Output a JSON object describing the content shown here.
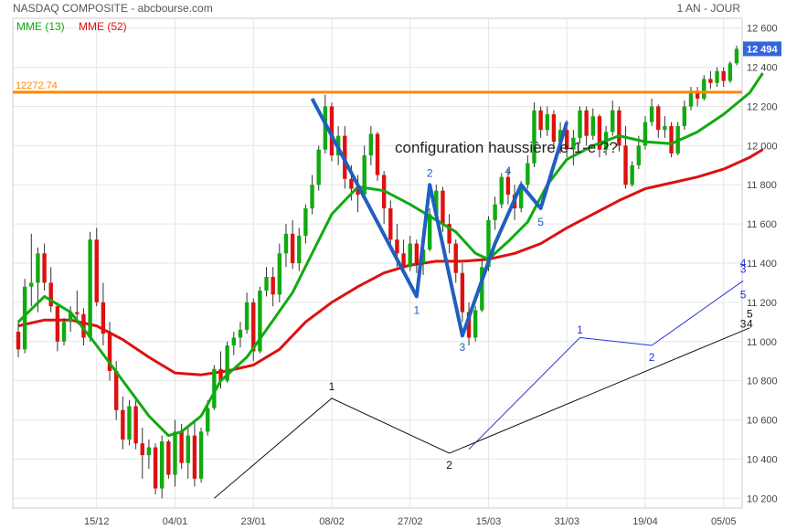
{
  "header": {
    "title": "NASDAQ COMPOSITE - abcbourse.com",
    "period": "1 AN - JOUR"
  },
  "legend": {
    "ema13_label": "MME (13)",
    "ema52_label": "MME (52)"
  },
  "colors": {
    "ema13": "#11aa11",
    "ema52": "#dd1111",
    "up_candle": "#11aa11",
    "down_candle": "#dd1111",
    "resistance": "#ff8800",
    "last_price_badge": "#3366dd",
    "wave_pattern": "#1f5fbf",
    "projection_blue": "#2233dd",
    "projection_black": "#111111",
    "grid": "#e6e6e6"
  },
  "chart_data": {
    "type": "candlestick",
    "title": "NASDAQ COMPOSITE",
    "grid": true,
    "ylim": [
      10150,
      12650
    ],
    "y_ticks": [
      10200,
      10400,
      10600,
      10800,
      11000,
      11200,
      11400,
      11600,
      11800,
      12000,
      12200,
      12400,
      12600
    ],
    "y_tick_labels": [
      "10 200",
      "10 400",
      "10 600",
      "10 800",
      "11 000",
      "11 200",
      "11 400",
      "11 600",
      "11 800",
      "12 000",
      "12 200",
      "12 400",
      "12 600"
    ],
    "x_ticks": [
      {
        "index": 12,
        "label": "15/12"
      },
      {
        "index": 24,
        "label": "04/01"
      },
      {
        "index": 36,
        "label": "23/01"
      },
      {
        "index": 48,
        "label": "08/02"
      },
      {
        "index": 60,
        "label": "27/02"
      },
      {
        "index": 72,
        "label": "15/03"
      },
      {
        "index": 84,
        "label": "31/03"
      },
      {
        "index": 96,
        "label": "19/04"
      },
      {
        "index": 108,
        "label": "05/05"
      }
    ],
    "resistance": {
      "value": 12272.74,
      "label": "12272.74"
    },
    "last_price": {
      "value": 12494,
      "label": "12 494"
    },
    "candles": [
      [
        11050,
        11100,
        10920,
        10960
      ],
      [
        10960,
        11320,
        10940,
        11280
      ],
      [
        11280,
        11550,
        11180,
        11300
      ],
      [
        11300,
        11480,
        11150,
        11450
      ],
      [
        11450,
        11500,
        11260,
        11300
      ],
      [
        11300,
        11380,
        11150,
        11180
      ],
      [
        11180,
        11200,
        10950,
        11000
      ],
      [
        11000,
        11120,
        10980,
        11100
      ],
      [
        11100,
        11180,
        11050,
        11150
      ],
      [
        11150,
        11260,
        11090,
        11140
      ],
      [
        11140,
        11170,
        10980,
        11020
      ],
      [
        11020,
        11560,
        11000,
        11520
      ],
      [
        11520,
        11580,
        11180,
        11200
      ],
      [
        11200,
        11300,
        10980,
        11040
      ],
      [
        11040,
        11100,
        10800,
        10850
      ],
      [
        10850,
        10900,
        10600,
        10650
      ],
      [
        10650,
        10720,
        10450,
        10500
      ],
      [
        10500,
        10700,
        10470,
        10670
      ],
      [
        10670,
        10700,
        10450,
        10480
      ],
      [
        10480,
        10560,
        10300,
        10420
      ],
      [
        10420,
        10500,
        10350,
        10460
      ],
      [
        10460,
        10480,
        10220,
        10250
      ],
      [
        10250,
        10520,
        10200,
        10490
      ],
      [
        10490,
        10500,
        10300,
        10320
      ],
      [
        10320,
        10600,
        10260,
        10540
      ],
      [
        10540,
        10580,
        10350,
        10380
      ],
      [
        10380,
        10560,
        10300,
        10520
      ],
      [
        10520,
        10600,
        10260,
        10300
      ],
      [
        10300,
        10560,
        10280,
        10540
      ],
      [
        10540,
        10700,
        10520,
        10660
      ],
      [
        10660,
        10880,
        10650,
        10860
      ],
      [
        10860,
        10950,
        10760,
        10800
      ],
      [
        10800,
        11000,
        10790,
        10980
      ],
      [
        10980,
        11050,
        10930,
        11020
      ],
      [
        11020,
        11100,
        10970,
        11060
      ],
      [
        11060,
        11250,
        11040,
        11200
      ],
      [
        11200,
        11220,
        10900,
        10950
      ],
      [
        10950,
        11280,
        10940,
        11260
      ],
      [
        11260,
        11380,
        11230,
        11330
      ],
      [
        11330,
        11380,
        11180,
        11240
      ],
      [
        11240,
        11500,
        11200,
        11450
      ],
      [
        11450,
        11600,
        11380,
        11550
      ],
      [
        11550,
        11620,
        11370,
        11400
      ],
      [
        11400,
        11580,
        11360,
        11540
      ],
      [
        11540,
        11700,
        11500,
        11680
      ],
      [
        11680,
        11850,
        11650,
        11800
      ],
      [
        11800,
        12000,
        11770,
        11980
      ],
      [
        11980,
        12260,
        11960,
        12200
      ],
      [
        12200,
        12220,
        11920,
        11950
      ],
      [
        11950,
        12100,
        11900,
        12050
      ],
      [
        12050,
        12100,
        11780,
        11830
      ],
      [
        11830,
        11900,
        11720,
        11780
      ],
      [
        11780,
        11850,
        11660,
        11750
      ],
      [
        11750,
        12000,
        11740,
        11950
      ],
      [
        11950,
        12100,
        11900,
        12060
      ],
      [
        12060,
        12070,
        11820,
        11850
      ],
      [
        11850,
        11870,
        11600,
        11680
      ],
      [
        11680,
        11720,
        11480,
        11520
      ],
      [
        11520,
        11600,
        11380,
        11450
      ],
      [
        11450,
        11520,
        11340,
        11380
      ],
      [
        11380,
        11540,
        11360,
        11500
      ],
      [
        11500,
        11520,
        11350,
        11400
      ],
      [
        11400,
        11500,
        11340,
        11470
      ],
      [
        11470,
        11680,
        11460,
        11650
      ],
      [
        11650,
        11800,
        11620,
        11770
      ],
      [
        11770,
        11790,
        11560,
        11600
      ],
      [
        11600,
        11650,
        11450,
        11500
      ],
      [
        11500,
        11520,
        11300,
        11350
      ],
      [
        11350,
        11400,
        11100,
        11150
      ],
      [
        11150,
        11200,
        10980,
        11020
      ],
      [
        11020,
        11180,
        11000,
        11160
      ],
      [
        11160,
        11420,
        11150,
        11380
      ],
      [
        11380,
        11640,
        11360,
        11620
      ],
      [
        11620,
        11740,
        11570,
        11700
      ],
      [
        11700,
        11860,
        11680,
        11840
      ],
      [
        11840,
        11880,
        11700,
        11750
      ],
      [
        11750,
        11800,
        11620,
        11680
      ],
      [
        11680,
        11820,
        11660,
        11800
      ],
      [
        11800,
        11950,
        11780,
        11910
      ],
      [
        11910,
        12220,
        11890,
        12180
      ],
      [
        12180,
        12200,
        12040,
        12080
      ],
      [
        12080,
        12200,
        12050,
        12160
      ],
      [
        12160,
        12180,
        11980,
        12020
      ],
      [
        12020,
        12120,
        11960,
        12080
      ],
      [
        12080,
        12130,
        11940,
        11980
      ],
      [
        11980,
        12080,
        11900,
        12040
      ],
      [
        12040,
        12200,
        12010,
        12180
      ],
      [
        12180,
        12200,
        12000,
        12050
      ],
      [
        12050,
        12190,
        12030,
        12150
      ],
      [
        12150,
        12160,
        11940,
        11980
      ],
      [
        11980,
        12100,
        11950,
        12070
      ],
      [
        12070,
        12230,
        12050,
        12180
      ],
      [
        12180,
        12200,
        11970,
        12000
      ],
      [
        12000,
        12100,
        11780,
        11800
      ],
      [
        11800,
        11920,
        11790,
        11900
      ],
      [
        11900,
        12050,
        11880,
        12000
      ],
      [
        12000,
        12150,
        11980,
        12120
      ],
      [
        12120,
        12240,
        12100,
        12200
      ],
      [
        12200,
        12210,
        12040,
        12080
      ],
      [
        12080,
        12150,
        12040,
        12100
      ],
      [
        12100,
        12120,
        11940,
        11960
      ],
      [
        11960,
        12120,
        11950,
        12100
      ],
      [
        12100,
        12230,
        12080,
        12200
      ],
      [
        12200,
        12300,
        12180,
        12280
      ],
      [
        12280,
        12300,
        12200,
        12240
      ],
      [
        12240,
        12360,
        12230,
        12340
      ],
      [
        12340,
        12380,
        12290,
        12320
      ],
      [
        12320,
        12400,
        12300,
        12380
      ],
      [
        12380,
        12400,
        12300,
        12330
      ],
      [
        12330,
        12430,
        12320,
        12420
      ],
      [
        12420,
        12510,
        12410,
        12494
      ]
    ],
    "ema13": [
      [
        0,
        11100
      ],
      [
        4,
        11230
      ],
      [
        8,
        11150
      ],
      [
        12,
        10980
      ],
      [
        16,
        10800
      ],
      [
        20,
        10620
      ],
      [
        23,
        10520
      ],
      [
        25,
        10540
      ],
      [
        28,
        10620
      ],
      [
        31,
        10800
      ],
      [
        35,
        10920
      ],
      [
        38,
        11060
      ],
      [
        42,
        11250
      ],
      [
        45,
        11450
      ],
      [
        48,
        11650
      ],
      [
        52,
        11790
      ],
      [
        56,
        11770
      ],
      [
        60,
        11700
      ],
      [
        64,
        11620
      ],
      [
        67,
        11560
      ],
      [
        70,
        11450
      ],
      [
        72,
        11420
      ],
      [
        75,
        11510
      ],
      [
        78,
        11610
      ],
      [
        81,
        11800
      ],
      [
        84,
        11930
      ],
      [
        88,
        12000
      ],
      [
        92,
        12050
      ],
      [
        96,
        12020
      ],
      [
        100,
        12010
      ],
      [
        104,
        12070
      ],
      [
        108,
        12160
      ],
      [
        112,
        12270
      ],
      [
        114,
        12370
      ]
    ],
    "ema52": [
      [
        0,
        11080
      ],
      [
        4,
        11110
      ],
      [
        8,
        11110
      ],
      [
        12,
        11080
      ],
      [
        16,
        11010
      ],
      [
        20,
        10920
      ],
      [
        24,
        10840
      ],
      [
        28,
        10830
      ],
      [
        32,
        10850
      ],
      [
        36,
        10880
      ],
      [
        40,
        10960
      ],
      [
        44,
        11100
      ],
      [
        48,
        11200
      ],
      [
        52,
        11280
      ],
      [
        56,
        11350
      ],
      [
        60,
        11390
      ],
      [
        64,
        11410
      ],
      [
        68,
        11410
      ],
      [
        72,
        11420
      ],
      [
        76,
        11450
      ],
      [
        80,
        11500
      ],
      [
        84,
        11580
      ],
      [
        88,
        11650
      ],
      [
        92,
        11720
      ],
      [
        96,
        11780
      ],
      [
        100,
        11810
      ],
      [
        104,
        11840
      ],
      [
        108,
        11880
      ],
      [
        112,
        11940
      ],
      [
        114,
        11980
      ]
    ],
    "annotation": "configuration haussière e-1-e ??",
    "wave_pattern_blue_thick": {
      "points": [
        [
          45,
          12240
        ],
        [
          61,
          11230
        ],
        [
          63,
          11800
        ],
        [
          68,
          11030
        ],
        [
          73,
          11500
        ],
        [
          77,
          11800
        ],
        [
          80,
          11680
        ],
        [
          84,
          12120
        ]
      ],
      "labels": [
        {
          "text": "1",
          "at": [
            61,
            11160
          ]
        },
        {
          "text": "2",
          "at": [
            63,
            11860
          ]
        },
        {
          "text": "3",
          "at": [
            68,
            10970
          ]
        },
        {
          "text": "4",
          "at": [
            75,
            11870
          ]
        },
        {
          "text": "5",
          "at": [
            80,
            11610
          ]
        }
      ]
    },
    "projection_blue": {
      "points": [
        [
          69,
          10450
        ],
        [
          86,
          11020
        ],
        [
          97,
          10980
        ],
        [
          111,
          11310
        ]
      ],
      "labels": [
        {
          "text": "1",
          "at": [
            86,
            11060
          ]
        },
        {
          "text": "2",
          "at": [
            97,
            10920
          ]
        },
        {
          "text": "3",
          "at": [
            111,
            11370
          ]
        },
        {
          "text": "4",
          "at": [
            111,
            11400
          ]
        },
        {
          "text": "5",
          "at": [
            111,
            11240
          ]
        }
      ]
    },
    "projection_black": {
      "points": [
        [
          30,
          10200
        ],
        [
          48,
          10710
        ],
        [
          66,
          10430
        ],
        [
          112,
          11070
        ]
      ],
      "labels": [
        {
          "text": "1",
          "at": [
            48,
            10770
          ]
        },
        {
          "text": "2",
          "at": [
            66,
            10370
          ]
        },
        {
          "text": "3",
          "at": [
            111,
            11090
          ]
        },
        {
          "text": "4",
          "at": [
            112,
            11090
          ]
        },
        {
          "text": "5",
          "at": [
            112,
            11140
          ]
        }
      ]
    }
  }
}
